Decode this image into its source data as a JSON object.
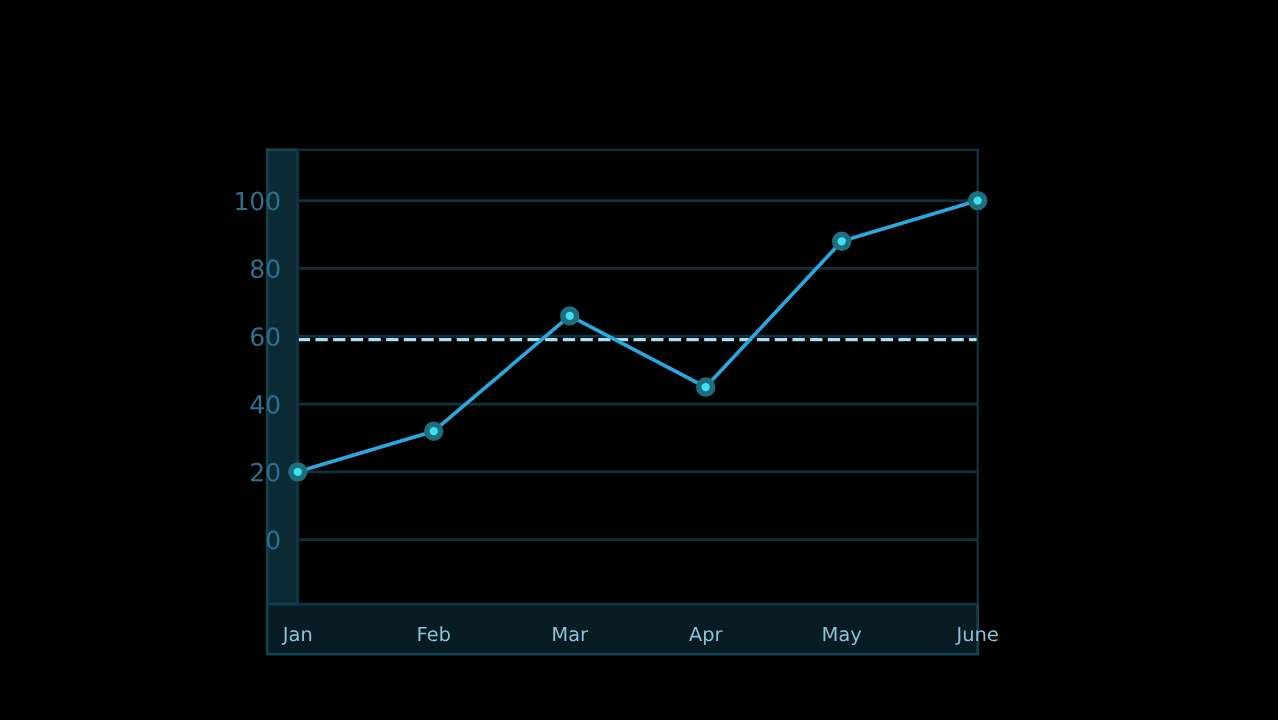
{
  "chart_data": {
    "type": "line",
    "categories": [
      "Jan",
      "Feb",
      "Mar",
      "Apr",
      "May",
      "June"
    ],
    "series": [
      {
        "color": "#2aa8e0",
        "values": [
          20,
          32,
          66,
          45,
          88,
          100
        ]
      }
    ],
    "ylim": [
      -19,
      115
    ],
    "yticks": [
      0,
      20,
      40,
      60,
      80,
      100
    ],
    "grid": "y",
    "marker": "circle",
    "line_style": "solid",
    "ref_lines": [
      {
        "axis": "y",
        "value": 59,
        "color": "#a8e0f5",
        "line_style": "dashed"
      }
    ]
  }
}
